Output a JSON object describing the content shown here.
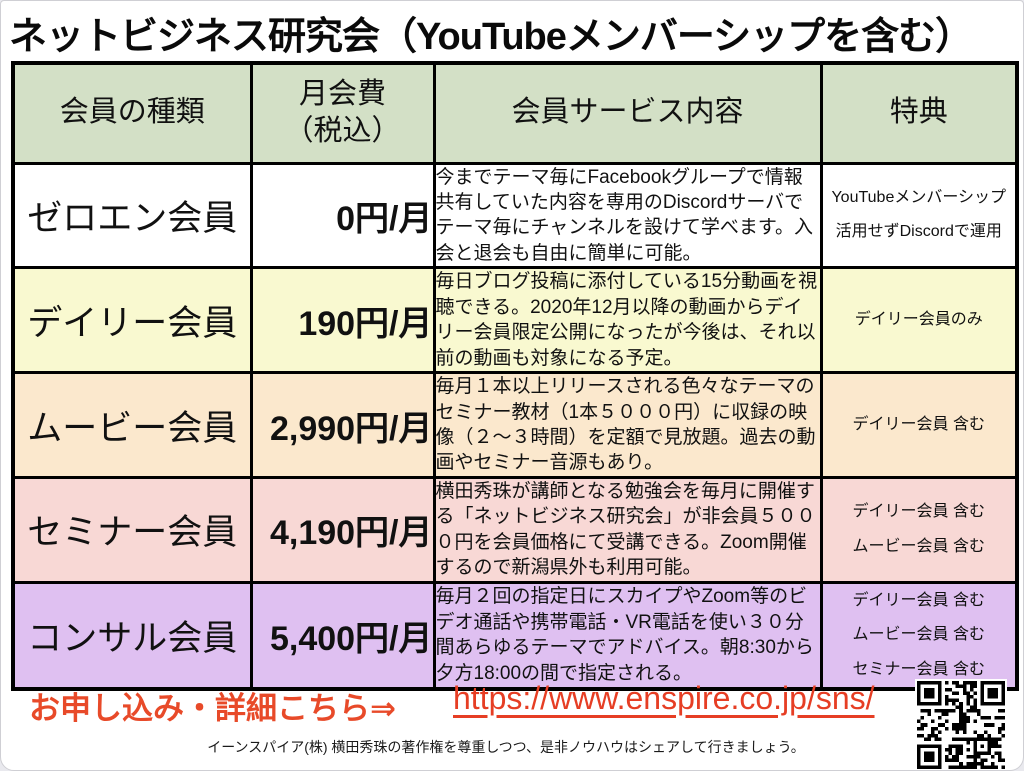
{
  "title": "ネットビジネス研究会（YouTubeメンバーシップを含む）",
  "table": {
    "headers": [
      "会員の種類",
      "月会費\n（税込）",
      "会員サービス内容",
      "特典"
    ],
    "header_bg": "#d3e0c6",
    "rows": [
      {
        "type": "ゼロエン会員",
        "price": "0円/月",
        "service": "今までテーマ毎にFacebookグループで情報共有していた内容を専用のDiscordサーバでテーマ毎にチャンネルを設けて学べます。入会と退会も自由に簡単に可能。",
        "benefit": "YouTubeメンバーシップ\n活用せずDiscordで運用",
        "bg": "#ffffff"
      },
      {
        "type": "デイリー会員",
        "price": "190円/月",
        "service": "毎日ブログ投稿に添付している15分動画を視聴できる。2020年12月以降の動画からデイリー会員限定公開になったが今後は、それ以前の動画も対象になる予定。",
        "benefit": "デイリー会員のみ",
        "bg": "#f9f9d0"
      },
      {
        "type": "ムービー会員",
        "price": "2,990円/月",
        "service": "毎月１本以上リリースされる色々なテーマのセミナー教材（1本５０００円）に収録の映像（２〜３時間）を定額で見放題。過去の動画やセミナー音源もあり。",
        "benefit": "デイリー会員 含む",
        "bg": "#fbe8cd"
      },
      {
        "type": "セミナー会員",
        "price": "4,190円/月",
        "service": "横田秀珠が講師となる勉強会を毎月に開催する「ネットビジネス研究会」が非会員５０００円を会員価格にて受講できる。Zoom開催するので新潟県外も利用可能。",
        "benefit": "デイリー会員 含む\nムービー会員 含む",
        "bg": "#f8d8d5"
      },
      {
        "type": "コンサル会員",
        "price": "5,400円/月",
        "service": "毎月２回の指定日にスカイプやZoom等のビデオ通話や携帯電話・VR電話を使い３０分間あらゆるテーマでアドバイス。朝8:30から夕方18:00の間で指定される。",
        "benefit": "デイリー会員 含む\nムービー会員 含む\nセミナー会員 含む",
        "bg": "#dfc0f1"
      }
    ]
  },
  "footer": {
    "cta_label": "お申し込み・詳細こちら⇒",
    "url": "https://www.enspire.co.jp/sns/",
    "note": "イーンスパイア(株) 横田秀珠の著作権を尊重しつつ、是非ノウハウはシェアして行きましょう。",
    "qr_icon": "qr-code"
  },
  "colors": {
    "cta_red": "#e84a29",
    "url_red": "#e63e24",
    "table_border": "#000000"
  }
}
